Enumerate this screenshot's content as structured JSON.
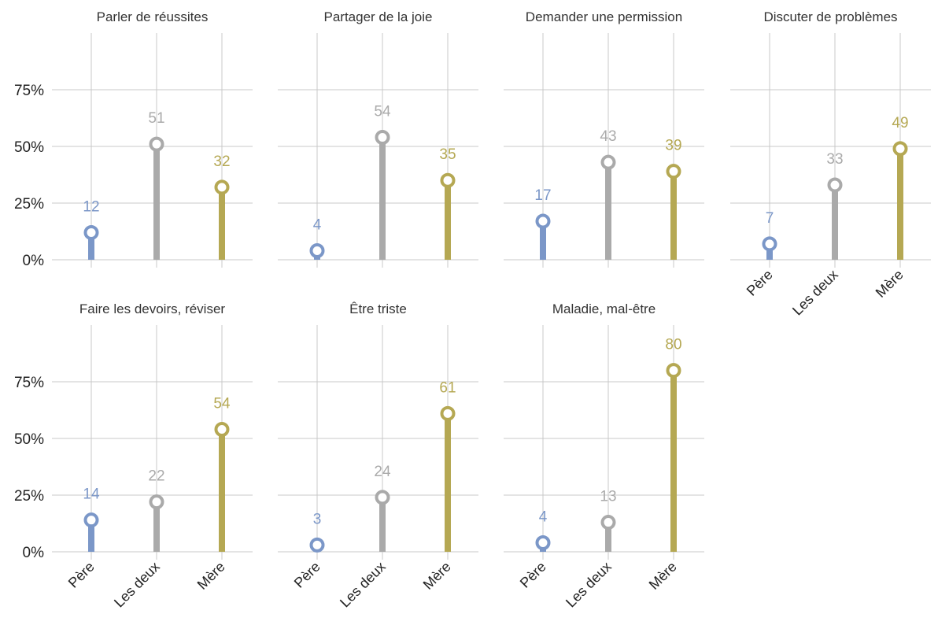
{
  "chart_data": {
    "type": "lollipop",
    "categories": [
      "Père",
      "Les deux",
      "Mère"
    ],
    "colors": {
      "Père": "#7b97c8",
      "Les deux": "#aaaaaa",
      "Mère": "#b5a853"
    },
    "y_ticks": [
      {
        "value": 0,
        "label": "0%"
      },
      {
        "value": 25,
        "label": "25%"
      },
      {
        "value": 50,
        "label": "50%"
      },
      {
        "value": 75,
        "label": "75%"
      }
    ],
    "ylim": [
      0,
      100
    ],
    "grid": true,
    "panels": [
      {
        "title": "Parler de réussites",
        "values": [
          12,
          51,
          32
        ],
        "labels": [
          "12",
          "51",
          "32"
        ]
      },
      {
        "title": "Partager de la joie",
        "values": [
          4,
          54,
          35
        ],
        "labels": [
          "4",
          "54",
          "35"
        ]
      },
      {
        "title": "Demander une permission",
        "values": [
          17,
          43,
          39
        ],
        "labels": [
          "17",
          "43",
          "39"
        ]
      },
      {
        "title": "Discuter de problèmes",
        "values": [
          7,
          33,
          49
        ],
        "labels": [
          "7",
          "33",
          "49"
        ]
      },
      {
        "title": "Faire les devoirs, réviser",
        "values": [
          14,
          22,
          54
        ],
        "labels": [
          "14",
          "22",
          "54"
        ]
      },
      {
        "title": "Être triste",
        "values": [
          3,
          24,
          61
        ],
        "labels": [
          "3",
          "24",
          "61"
        ]
      },
      {
        "title": "Maladie, mal-être",
        "values": [
          4,
          13,
          80
        ],
        "labels": [
          "4",
          "13",
          "80"
        ]
      }
    ]
  }
}
